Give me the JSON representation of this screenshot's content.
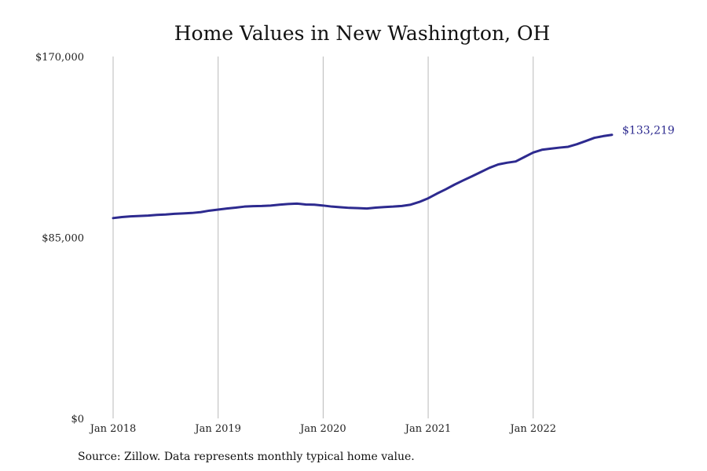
{
  "chart_data": {
    "type": "line",
    "title": "Home Values in New Washington, OH",
    "xlabel": "",
    "ylabel": "",
    "ylim": [
      0,
      170000
    ],
    "xlim": [
      "2018-01",
      "2022-10"
    ],
    "grid": "vertical",
    "x_ticks": [
      {
        "label": "Jan 2018",
        "value": "2018-01"
      },
      {
        "label": "Jan 2019",
        "value": "2019-01"
      },
      {
        "label": "Jan 2020",
        "value": "2020-01"
      },
      {
        "label": "Jan 2021",
        "value": "2021-01"
      },
      {
        "label": "Jan 2022",
        "value": "2022-01"
      }
    ],
    "y_ticks": [
      {
        "label": "$0",
        "value": 0
      },
      {
        "label": "$85,000",
        "value": 85000
      },
      {
        "label": "$170,000",
        "value": 170000
      }
    ],
    "series": [
      {
        "color": "#2d2a8f",
        "end_label": "$133,219",
        "x": [
          "2018-01",
          "2018-02",
          "2018-03",
          "2018-04",
          "2018-05",
          "2018-06",
          "2018-07",
          "2018-08",
          "2018-09",
          "2018-10",
          "2018-11",
          "2018-12",
          "2019-01",
          "2019-02",
          "2019-03",
          "2019-04",
          "2019-05",
          "2019-06",
          "2019-07",
          "2019-08",
          "2019-09",
          "2019-10",
          "2019-11",
          "2019-12",
          "2020-01",
          "2020-02",
          "2020-03",
          "2020-04",
          "2020-05",
          "2020-06",
          "2020-07",
          "2020-08",
          "2020-09",
          "2020-10",
          "2020-11",
          "2020-12",
          "2021-01",
          "2021-02",
          "2021-03",
          "2021-04",
          "2021-05",
          "2021-06",
          "2021-07",
          "2021-08",
          "2021-09",
          "2021-10",
          "2021-11",
          "2021-12",
          "2022-01",
          "2022-02",
          "2022-03",
          "2022-04",
          "2022-05",
          "2022-06",
          "2022-07",
          "2022-08",
          "2022-09",
          "2022-10"
        ],
        "values": [
          94100,
          94600,
          94900,
          95100,
          95300,
          95600,
          95800,
          96100,
          96300,
          96500,
          96900,
          97600,
          98100,
          98600,
          99000,
          99500,
          99700,
          99800,
          100000,
          100400,
          100700,
          100900,
          100500,
          100400,
          100000,
          99500,
          99200,
          98900,
          98800,
          98600,
          99000,
          99300,
          99500,
          99800,
          100400,
          101700,
          103400,
          105600,
          107600,
          109800,
          111800,
          113700,
          115700,
          117700,
          119300,
          120100,
          120700,
          122800,
          124900,
          126200,
          126700,
          127200,
          127600,
          128800,
          130300,
          131800,
          132600,
          133219
        ]
      }
    ]
  },
  "footer": {
    "source": "Source: Zillow. Data represents monthly typical home value."
  }
}
